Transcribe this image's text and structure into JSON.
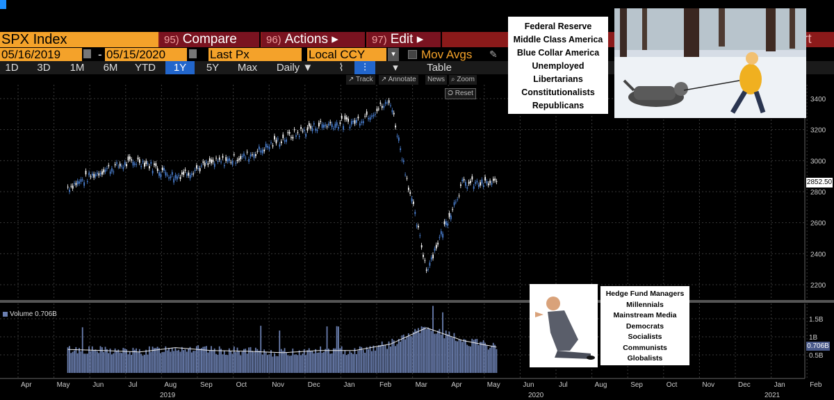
{
  "toolbar": {
    "ticker": "SPX Index",
    "compare_num": "95)",
    "compare_label": "Compare",
    "actions_num": "96)",
    "actions_label": "Actions ▸",
    "edit_num": "97)",
    "edit_label": "Edit ▸",
    "right_label": "rt"
  },
  "dates": {
    "start": "05/16/2019",
    "end": "05/15/2020",
    "separator": "-",
    "field": "Last Px",
    "currency": "Local CCY",
    "mov_avgs": "Mov Avgs"
  },
  "periods": [
    "1D",
    "3D",
    "1M",
    "6M",
    "YTD",
    "1Y",
    "5Y",
    "Max"
  ],
  "selected_period": "1Y",
  "frequency": "Daily ▼",
  "table_label": "Table",
  "tools": {
    "track": "↗ Track",
    "annotate": "↗ Annotate",
    "news": "News",
    "zoom": "⌕ Zoom",
    "reset": "⭘ Reset"
  },
  "colors": {
    "accent": "#f4a22a",
    "menu": "#7a1320",
    "candle_up": "#ffffff",
    "candle_down": "#4a7fd0",
    "volume": "#6b7fb0",
    "selected": "#2266cc"
  },
  "chart_data": [
    {
      "type": "line",
      "title": "SPX Index",
      "x_label_months": [
        "Apr",
        "May",
        "Jun",
        "Jul",
        "Aug",
        "Sep",
        "Oct",
        "Nov",
        "Dec",
        "Jan",
        "Feb",
        "Mar",
        "Apr",
        "May",
        "Jun",
        "Jul",
        "Aug",
        "Sep",
        "Oct",
        "Nov",
        "Dec",
        "Jan",
        "Feb"
      ],
      "x_label_years": [
        "2019",
        "2020",
        "2021"
      ],
      "y_ticks": [
        2200,
        2400,
        2600,
        2800,
        3000,
        3200,
        3400
      ],
      "ylim": [
        2150,
        3450
      ],
      "last_price": "2852.50",
      "series": [
        {
          "name": "SPX Index",
          "x": [
            "2019-05",
            "2019-06",
            "2019-07",
            "2019-08",
            "2019-09",
            "2019-10",
            "2019-11",
            "2019-12",
            "2020-01",
            "2020-02",
            "2020-03",
            "2020-04",
            "2020-05"
          ],
          "values": [
            2830,
            2940,
            3000,
            2900,
            2980,
            3030,
            3140,
            3230,
            3250,
            3380,
            2300,
            2850,
            2852
          ]
        }
      ]
    },
    {
      "type": "bar",
      "title": "Volume",
      "legend": "Volume 0.706B",
      "y_ticks": [
        "0.5B",
        "1B",
        "1.5B"
      ],
      "last_volume": "0.706B",
      "series": [
        {
          "name": "Volume",
          "x": [
            "2019-05",
            "2019-06",
            "2019-07",
            "2019-08",
            "2019-09",
            "2019-10",
            "2019-11",
            "2019-12",
            "2020-01",
            "2020-02",
            "2020-03",
            "2020-04",
            "2020-05"
          ],
          "values": [
            0.65,
            0.62,
            0.58,
            0.7,
            0.62,
            0.6,
            0.56,
            0.62,
            0.62,
            0.8,
            1.25,
            0.9,
            0.706
          ]
        }
      ]
    }
  ],
  "meme_top": [
    "Federal Reserve",
    "Middle Class America",
    "Blue Collar America",
    "Unemployed",
    "Libertarians",
    "Constitutionalists",
    "Republicans"
  ],
  "meme_bottom": [
    "Hedge Fund Managers",
    "Millennials",
    "Mainstream Media",
    "Democrats",
    "Socialists",
    "Communists",
    "Globalists"
  ]
}
